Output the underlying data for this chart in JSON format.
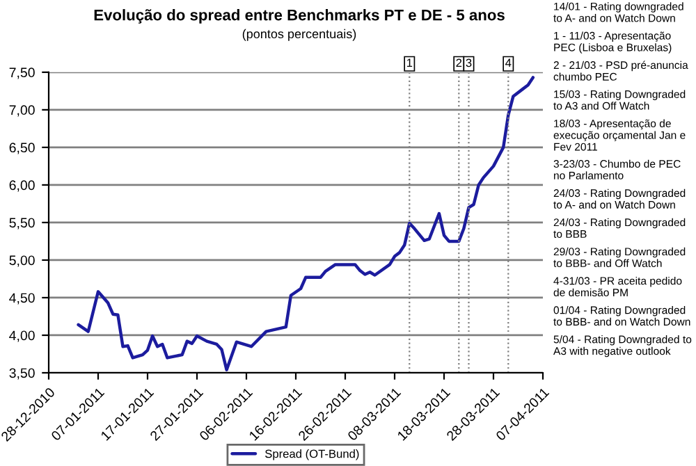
{
  "chart_data": {
    "type": "line",
    "title": "Evolução do spread entre Benchmarks PT e DE - 5 anos",
    "subtitle": "(pontos percentuais)",
    "x": [
      "2011-01-03",
      "2011-01-05",
      "2011-01-07",
      "2011-01-09",
      "2011-01-10",
      "2011-01-11",
      "2011-01-12",
      "2011-01-13",
      "2011-01-14",
      "2011-01-16",
      "2011-01-17",
      "2011-01-18",
      "2011-01-19",
      "2011-01-20",
      "2011-01-21",
      "2011-01-24",
      "2011-01-25",
      "2011-01-26",
      "2011-01-27",
      "2011-01-29",
      "2011-01-31",
      "2011-02-01",
      "2011-02-02",
      "2011-02-04",
      "2011-02-07",
      "2011-02-10",
      "2011-02-14",
      "2011-02-15",
      "2011-02-17",
      "2011-02-18",
      "2011-02-21",
      "2011-02-22",
      "2011-02-24",
      "2011-02-28",
      "2011-03-01",
      "2011-03-02",
      "2011-03-03",
      "2011-03-04",
      "2011-03-07",
      "2011-03-08",
      "2011-03-09",
      "2011-03-10",
      "2011-03-11",
      "2011-03-12",
      "2011-03-14",
      "2011-03-15",
      "2011-03-17",
      "2011-03-18",
      "2011-03-19",
      "2011-03-21",
      "2011-03-22",
      "2011-03-23",
      "2011-03-24",
      "2011-03-25",
      "2011-03-26",
      "2011-03-28",
      "2011-03-30",
      "2011-03-31",
      "2011-04-01",
      "2011-04-03",
      "2011-04-04",
      "2011-04-05"
    ],
    "series": [
      {
        "name": "Spread (OT-Bund)",
        "color": "#1c1c9e",
        "values": [
          4.14,
          4.05,
          4.58,
          4.43,
          4.28,
          4.27,
          3.85,
          3.86,
          3.7,
          3.74,
          3.8,
          3.99,
          3.85,
          3.88,
          3.7,
          3.74,
          3.92,
          3.89,
          3.99,
          3.92,
          3.88,
          3.81,
          3.54,
          3.91,
          3.85,
          4.05,
          4.11,
          4.53,
          4.62,
          4.77,
          4.77,
          4.85,
          4.94,
          4.94,
          4.86,
          4.81,
          4.84,
          4.8,
          4.94,
          5.05,
          5.1,
          5.2,
          5.49,
          5.42,
          5.26,
          5.28,
          5.62,
          5.33,
          5.25,
          5.25,
          5.42,
          5.7,
          5.74,
          6.0,
          6.1,
          6.25,
          6.5,
          6.93,
          7.18,
          7.28,
          7.33,
          7.43
        ]
      }
    ],
    "xlim": [
      "2010-12-28",
      "2011-04-07"
    ],
    "xticks": [
      {
        "value": "2010-12-28",
        "label": "28-12-2010"
      },
      {
        "value": "2011-01-07",
        "label": "07-01-2011"
      },
      {
        "value": "2011-01-17",
        "label": "17-01-2011"
      },
      {
        "value": "2011-01-27",
        "label": "27-01-2011"
      },
      {
        "value": "2011-02-06",
        "label": "06-02-2011"
      },
      {
        "value": "2011-02-16",
        "label": "16-02-2011"
      },
      {
        "value": "2011-02-26",
        "label": "26-02-2011"
      },
      {
        "value": "2011-03-08",
        "label": "08-03-2011"
      },
      {
        "value": "2011-03-18",
        "label": "18-03-2011"
      },
      {
        "value": "2011-03-28",
        "label": "28-03-2011"
      },
      {
        "value": "2011-04-07",
        "label": "07-04-2011"
      }
    ],
    "ylim": [
      3.5,
      7.5
    ],
    "yticks": [
      {
        "value": 3.5,
        "label": "3,50"
      },
      {
        "value": 4.0,
        "label": "4,00"
      },
      {
        "value": 4.5,
        "label": "4,50"
      },
      {
        "value": 5.0,
        "label": "5,00"
      },
      {
        "value": 5.5,
        "label": "5,50"
      },
      {
        "value": 6.0,
        "label": "6,00"
      },
      {
        "value": 6.5,
        "label": "6,50"
      },
      {
        "value": 7.0,
        "label": "7,00"
      },
      {
        "value": 7.5,
        "label": "7,50"
      }
    ],
    "grid": "y",
    "legend": "bottom",
    "marker": "none",
    "line_style": "solid",
    "ref_lines": [
      {
        "axis": "x",
        "value": "2011-03-11",
        "label": "1",
        "color": "#808080",
        "line_style": "dotted"
      },
      {
        "axis": "x",
        "value": "2011-03-21",
        "label": "2",
        "color": "#808080",
        "line_style": "dotted"
      },
      {
        "axis": "x",
        "value": "2011-03-23",
        "label": "3",
        "color": "#808080",
        "line_style": "dotted"
      },
      {
        "axis": "x",
        "value": "2011-03-31",
        "label": "4",
        "color": "#808080",
        "line_style": "dotted"
      }
    ],
    "annotations": [
      "14/01 - Rating downgraded to A- and on Watch Down",
      "1 - 11/03 - Apresentação PEC (Lisboa e Bruxelas)",
      "2 - 21/03 - PSD pré-anuncia chumbo PEC",
      "15/03 - Rating Downgraded to A3 and Off Watch",
      "18/03 - Apresentação de execução orçamental Jan e Fev 2011",
      "3-23/03 - Chumbo de PEC no Parlamento",
      "24/03 - Rating Downgraded to A- and on Watch Down",
      "24/03 - Rating Downgraded to BBB",
      "29/03 - Rating Downgraded to BBB- and Off Watch",
      "4-31/03 - PR aceita pedido de demisão PM",
      "01/04 - Rating Downgraded to BBB- and on Watch Down",
      "5/04 - Rating Downgraded to A3 with negative outlook"
    ]
  }
}
